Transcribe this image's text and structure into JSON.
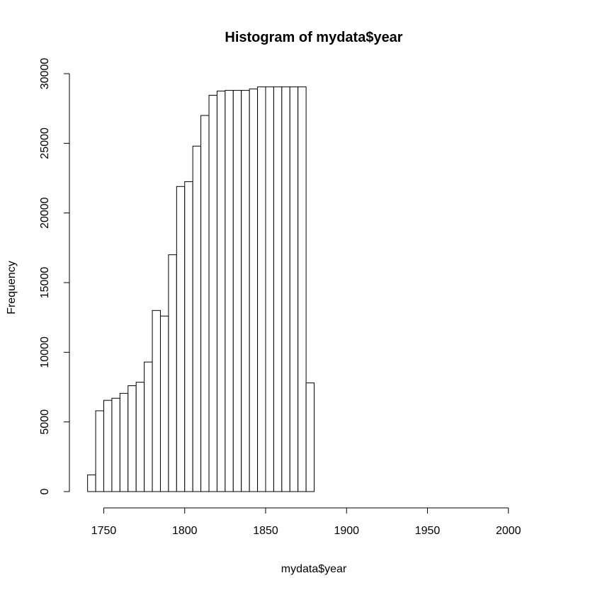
{
  "chart_data": {
    "type": "bar",
    "title": "Histogram of mydata$year",
    "xlabel": "mydata$year",
    "ylabel": "Frequency",
    "bin_width": 5,
    "bins": [
      {
        "from": 1740,
        "to": 1745,
        "count": 1200
      },
      {
        "from": 1745,
        "to": 1750,
        "count": 5800
      },
      {
        "from": 1750,
        "to": 1755,
        "count": 6550
      },
      {
        "from": 1755,
        "to": 1760,
        "count": 6700
      },
      {
        "from": 1760,
        "to": 1765,
        "count": 7050
      },
      {
        "from": 1765,
        "to": 1770,
        "count": 7600
      },
      {
        "from": 1770,
        "to": 1775,
        "count": 7850
      },
      {
        "from": 1775,
        "to": 1780,
        "count": 9300
      },
      {
        "from": 1780,
        "to": 1785,
        "count": 13000
      },
      {
        "from": 1785,
        "to": 1790,
        "count": 12600
      },
      {
        "from": 1790,
        "to": 1795,
        "count": 17000
      },
      {
        "from": 1795,
        "to": 1800,
        "count": 21900
      },
      {
        "from": 1800,
        "to": 1805,
        "count": 22250
      },
      {
        "from": 1805,
        "to": 1810,
        "count": 24800
      },
      {
        "from": 1810,
        "to": 1815,
        "count": 27000
      },
      {
        "from": 1815,
        "to": 1820,
        "count": 28450
      },
      {
        "from": 1820,
        "to": 1825,
        "count": 28750
      },
      {
        "from": 1825,
        "to": 1830,
        "count": 28800
      },
      {
        "from": 1830,
        "to": 1835,
        "count": 28800
      },
      {
        "from": 1835,
        "to": 1840,
        "count": 28800
      },
      {
        "from": 1840,
        "to": 1845,
        "count": 28900
      },
      {
        "from": 1845,
        "to": 1850,
        "count": 29050
      },
      {
        "from": 1850,
        "to": 1855,
        "count": 29050
      },
      {
        "from": 1855,
        "to": 1860,
        "count": 29050
      },
      {
        "from": 1860,
        "to": 1865,
        "count": 29050
      },
      {
        "from": 1865,
        "to": 1870,
        "count": 29050
      },
      {
        "from": 1870,
        "to": 1875,
        "count": 29050
      },
      {
        "from": 1875,
        "to": 1880,
        "count": 7800
      }
    ],
    "x_ticks": [
      1750,
      1800,
      1850,
      1900,
      1950,
      2000
    ],
    "y_ticks": [
      0,
      5000,
      10000,
      15000,
      20000,
      25000,
      30000
    ],
    "xlim": [
      1740,
      2020
    ],
    "ylim": [
      0,
      30000
    ],
    "grid": false,
    "bar_fill": "#ffffff",
    "bar_stroke": "#000000"
  }
}
